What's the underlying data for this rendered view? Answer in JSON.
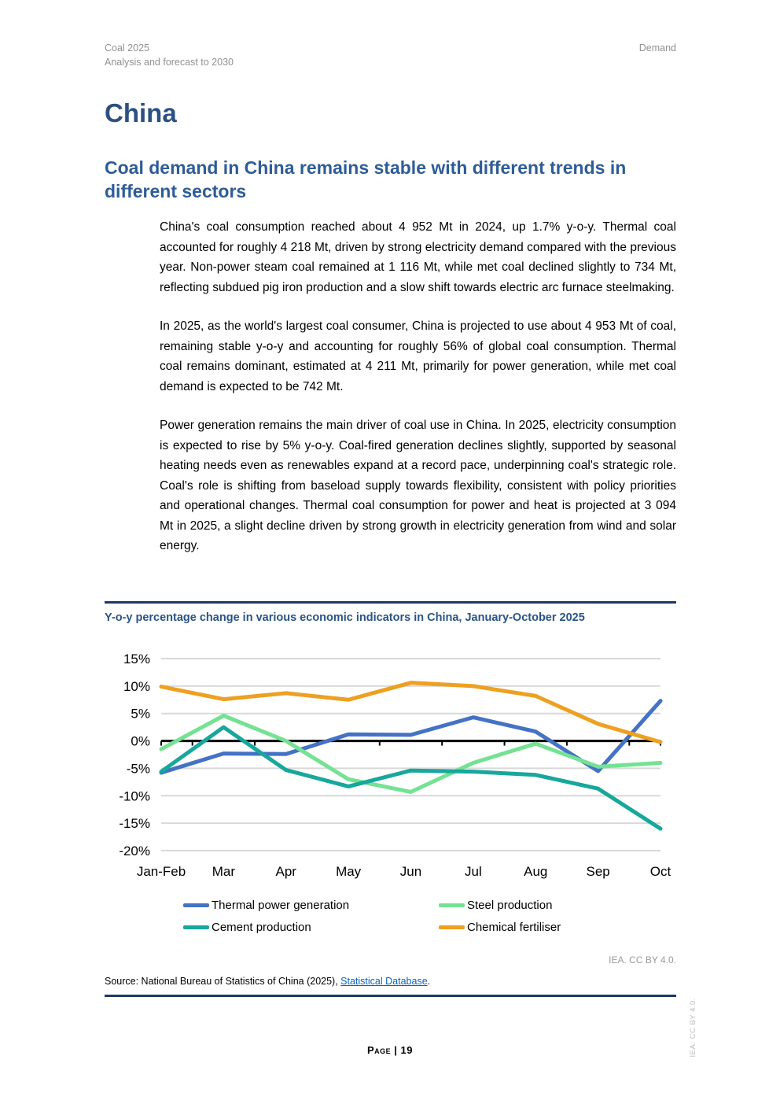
{
  "header": {
    "left_line1": "Coal 2025",
    "left_line2": "Analysis and forecast to 2030",
    "right": "Demand"
  },
  "title": "China",
  "section_heading": "Coal demand in China remains stable with different trends in different sectors",
  "paragraphs": [
    "China's coal consumption reached about 4 952 Mt in 2024, up 1.7% y-o-y. Thermal coal accounted for roughly 4 218 Mt, driven by strong electricity demand compared with the previous year. Non-power steam coal remained at 1 116 Mt, while met coal declined slightly to 734 Mt, reflecting subdued pig iron production and a slow shift towards electric arc furnace steelmaking.",
    "In 2025, as the world's largest coal consumer, China is projected to use about 4 953 Mt of coal, remaining stable y-o-y and accounting for roughly 56% of global coal consumption. Thermal coal remains dominant, estimated at 4 211 Mt, primarily for power generation, while met coal demand is expected to be 742 Mt.",
    "Power generation remains the main driver of coal use in China. In 2025, electricity consumption is expected to rise by 5% y-o-y. Coal-fired generation declines slightly, supported by seasonal heating needs even as renewables expand at a record pace, underpinning coal's strategic role. Coal's role is shifting from baseload supply towards flexibility, consistent with policy priorities and operational changes. Thermal coal consumption for power and heat is projected at 3 094 Mt in 2025, a slight decline driven by strong growth in electricity generation from wind and solar energy."
  ],
  "figure": {
    "title": "Y-o-y percentage change in various economic indicators in China, January-October 2025",
    "attribution": "IEA. CC BY 4.0.",
    "source_prefix": "Source: National Bureau of Statistics of China (2025), ",
    "source_link": "Statistical Database",
    "source_suffix": "."
  },
  "footer": {
    "page_label": "Page | 19",
    "side_note": "IEA. CC BY 4.0."
  },
  "chart_data": {
    "type": "line",
    "title": "Y-o-y percentage change in various economic indicators in China, January-October 2025",
    "categories": [
      "Jan-Feb",
      "Mar",
      "Apr",
      "May",
      "Jun",
      "Jul",
      "Aug",
      "Sep",
      "Oct"
    ],
    "series": [
      {
        "name": "Thermal power generation",
        "color": "#4472C4",
        "values": [
          -5.8,
          -2.3,
          -2.4,
          1.2,
          1.1,
          4.3,
          1.7,
          -5.5,
          7.3
        ]
      },
      {
        "name": "Steel production",
        "color": "#74E292",
        "values": [
          -1.5,
          4.6,
          0.0,
          -7.0,
          -9.3,
          -4.0,
          -0.5,
          -4.7,
          -4.0
        ]
      },
      {
        "name": "Cement production",
        "color": "#18A79C",
        "values": [
          -5.6,
          2.5,
          -5.3,
          -8.3,
          -5.4,
          -5.6,
          -6.2,
          -8.7,
          -16.0
        ]
      },
      {
        "name": "Chemical fertiliser",
        "color": "#EDA021",
        "values": [
          9.9,
          7.6,
          8.7,
          7.5,
          10.6,
          10.0,
          8.2,
          3.1,
          -0.2
        ]
      }
    ],
    "xlabel": "",
    "ylabel": "",
    "ylim": [
      -20,
      15
    ],
    "yticks": [
      15,
      10,
      5,
      0,
      -5,
      -10,
      -15,
      -20
    ],
    "ytick_suffix": "%",
    "grid": "horizontal",
    "zero_line": true,
    "legend_position": "bottom",
    "colors": {
      "gridline": "#D9D9D9",
      "axis": "#000000"
    }
  }
}
